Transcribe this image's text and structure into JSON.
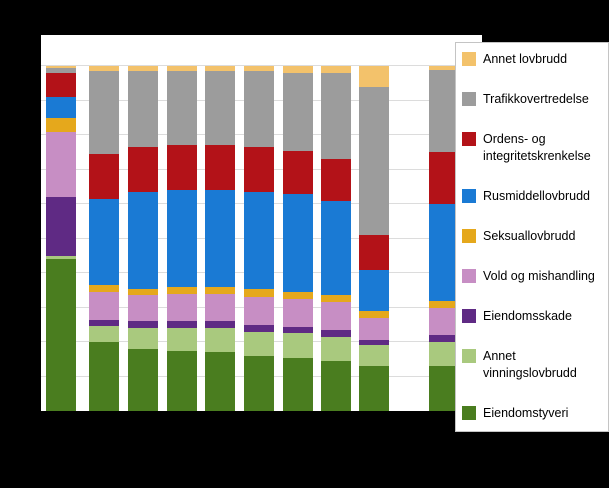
{
  "page": {
    "background_color": "#000000",
    "plot_background_color": "#ffffff",
    "gridline_color": "#dcdcdc",
    "axis_color": "#000000"
  },
  "chart_data": {
    "type": "bar",
    "variant": "stacked-percent",
    "title": "",
    "xlabel": "",
    "ylabel": "",
    "ylim": [
      0,
      100
    ],
    "grid": "horizontal, every 10%",
    "x_axis_labels_visible": false,
    "y_axis_labels_visible": false,
    "legend_position": "right",
    "categories": [
      "",
      "",
      "",
      "",
      "",
      "",
      "",
      "",
      "",
      ""
    ],
    "series": [
      {
        "name": "Eiendomstyveri",
        "color": "#4a7d1f",
        "values": [
          44.0,
          20.0,
          18.0,
          17.5,
          17.0,
          16.0,
          15.5,
          14.5,
          13.0,
          13.0
        ]
      },
      {
        "name": "Annet vinningslovbrudd",
        "color": "#a9c97e",
        "values": [
          1.0,
          4.5,
          6.0,
          6.5,
          7.0,
          7.0,
          7.0,
          7.0,
          6.0,
          7.0
        ]
      },
      {
        "name": "Eiendomsskade",
        "color": "#5f2a84",
        "values": [
          17.0,
          2.0,
          2.0,
          2.0,
          2.0,
          2.0,
          2.0,
          2.0,
          1.5,
          2.0
        ]
      },
      {
        "name": "Vold og mishandling",
        "color": "#c78ec4",
        "values": [
          19.0,
          8.0,
          7.5,
          8.0,
          8.0,
          8.0,
          8.0,
          8.0,
          6.5,
          8.0
        ]
      },
      {
        "name": "Seksuallovbrudd",
        "color": "#e5a81c",
        "values": [
          4.0,
          2.0,
          2.0,
          2.0,
          2.0,
          2.5,
          2.0,
          2.0,
          2.0,
          2.0
        ]
      },
      {
        "name": "Rusmiddellovbrudd",
        "color": "#1a7ad4",
        "values": [
          6.0,
          25.0,
          28.0,
          28.0,
          28.0,
          28.0,
          28.5,
          27.5,
          12.0,
          28.0
        ]
      },
      {
        "name": "Ordens- og integritetskrenkelse",
        "color": "#b31218",
        "values": [
          7.0,
          13.0,
          13.0,
          13.0,
          13.0,
          13.0,
          12.5,
          12.0,
          10.0,
          15.0
        ]
      },
      {
        "name": "Trafikkovertredelse",
        "color": "#9c9c9c",
        "values": [
          1.5,
          24.0,
          22.0,
          21.5,
          21.5,
          22.0,
          22.5,
          25.0,
          43.0,
          24.0
        ]
      },
      {
        "name": "Annet lovbrudd",
        "color": "#f3c26b",
        "values": [
          0.5,
          1.5,
          1.5,
          1.5,
          1.5,
          1.5,
          2.0,
          2.0,
          6.0,
          1.0
        ]
      }
    ],
    "legend_labels_top_to_bottom": [
      "Annet lovbrudd",
      "Trafikkovertredelse",
      "Ordens- og integritetskrenkelse",
      "Rusmiddellovbrudd",
      "Seksuallovbrudd",
      "Vold og mishandling",
      "Eiendomsskade",
      "Annet vinningslovbrudd",
      "Eiendomstyveri"
    ]
  }
}
